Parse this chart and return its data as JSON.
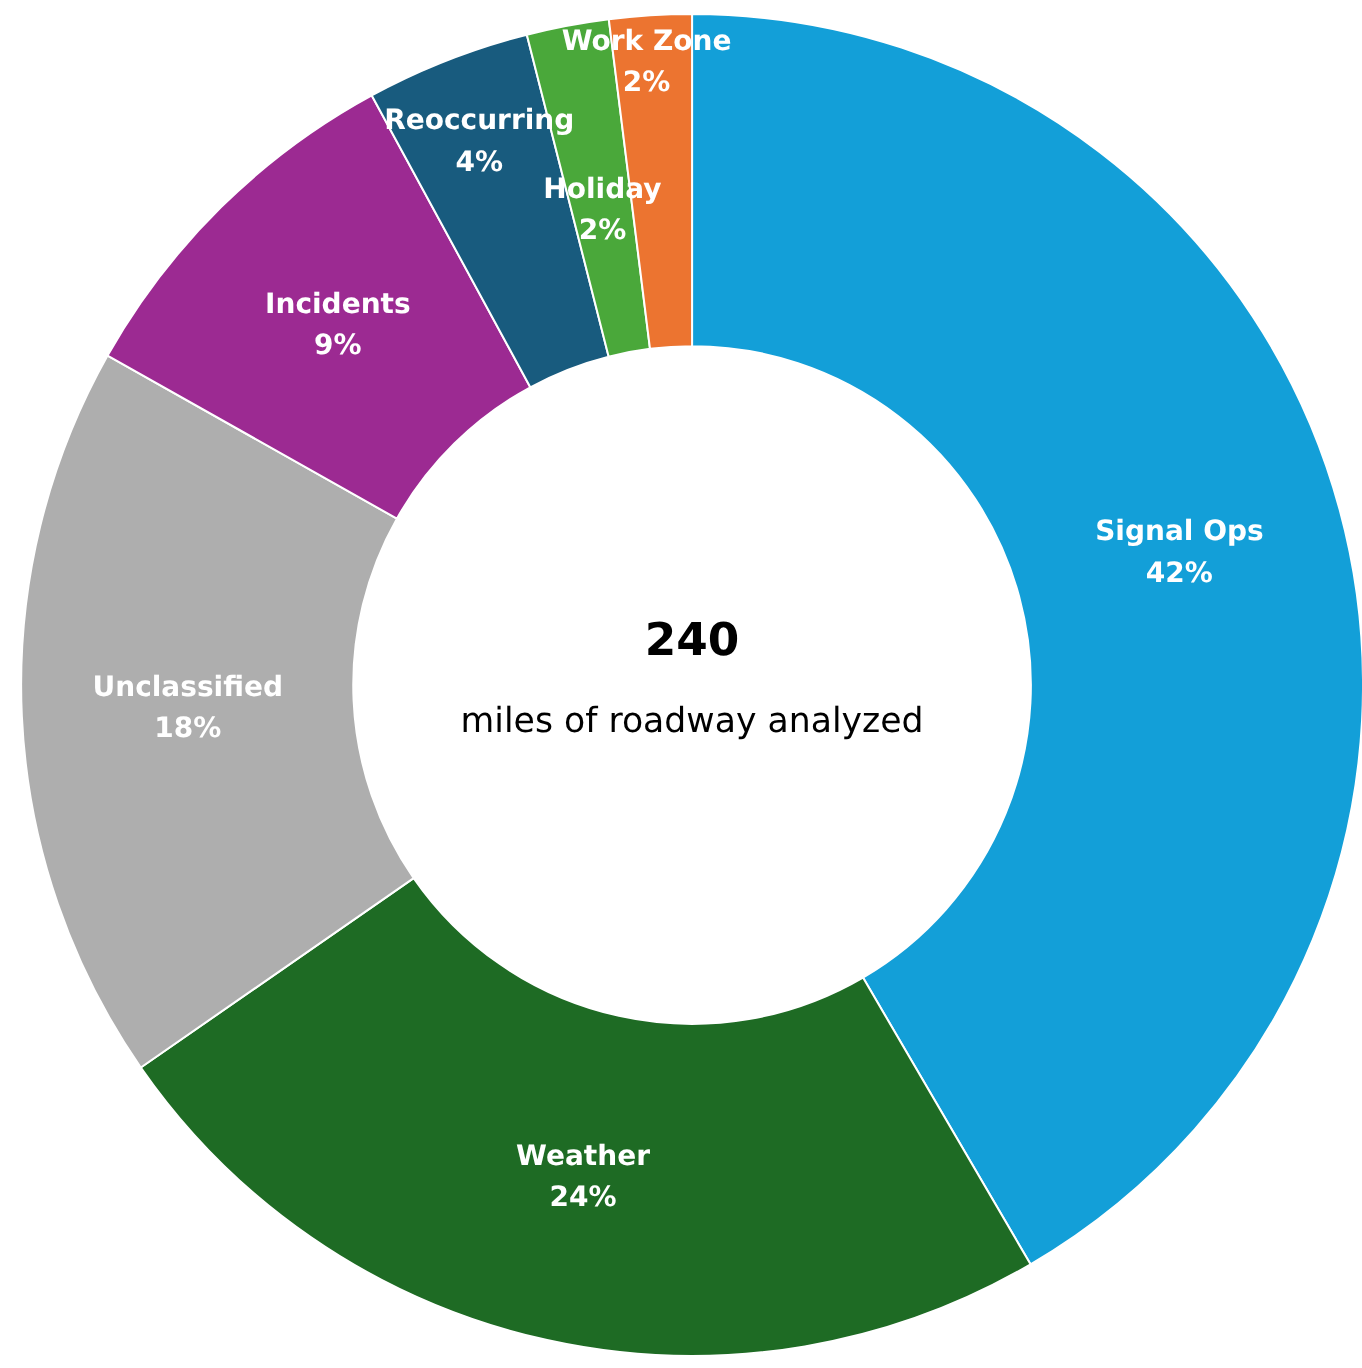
{
  "chart_data": {
    "type": "donut",
    "categories": [
      "Signal Ops",
      "Weather",
      "Unclassified",
      "Incidents",
      "Reoccurring",
      "Holiday",
      "Work Zone"
    ],
    "values": [
      42,
      24,
      18,
      9,
      4,
      2,
      2
    ],
    "value_labels": [
      "42%",
      "24%",
      "18%",
      "9%",
      "4%",
      "2%",
      "2%"
    ],
    "colors": [
      "#139fd8",
      "#1e6b24",
      "#aeaeae",
      "#9c2a92",
      "#185b7e",
      "#4aa83a",
      "#ec7430"
    ],
    "annotations": [
      "240",
      "miles of roadway analyzed"
    ]
  }
}
